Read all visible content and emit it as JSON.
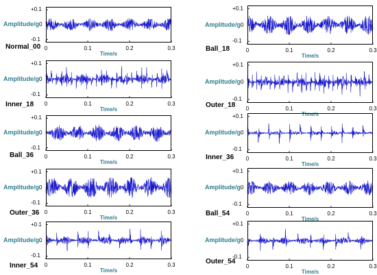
{
  "labels": {
    "y_axis": "Amplitude/g",
    "x_axis": "Time/s",
    "y_ticks": [
      "+0.1",
      "0",
      "-0.1"
    ],
    "x_ticks": [
      "0",
      "0.1",
      "0.2",
      "0.3"
    ]
  },
  "colors": {
    "signal": "#1a1acc",
    "axis": "#000000",
    "label": "#2e7d8c"
  },
  "chart_data": [
    {
      "type": "line",
      "title": "Normal_00",
      "xlabel": "Time/s",
      "ylabel": "Amplitude/g",
      "xlim": [
        0,
        0.3
      ],
      "ylim": [
        -0.12,
        0.12
      ],
      "impulses_per_window": 0,
      "noise_level": 0.045
    },
    {
      "type": "line",
      "title": "Ball_18",
      "xlabel": "Time/s",
      "ylabel": "Amplitude/g",
      "xlim": [
        0,
        0.3
      ],
      "ylim": [
        -0.12,
        0.12
      ],
      "impulses_per_window": 0,
      "noise_level": 0.06
    },
    {
      "type": "line",
      "title": "Inner_18",
      "xlabel": "Time/s",
      "ylabel": "Amplitude/g",
      "xlim": [
        0,
        0.3
      ],
      "ylim": [
        -0.12,
        0.12
      ],
      "impulses_per_window": 25,
      "noise_level": 0.03
    },
    {
      "type": "line",
      "title": "Outer_18",
      "xlabel": "Time/s",
      "ylabel": "Amplitude/g",
      "xlim": [
        0,
        0.3
      ],
      "ylim": [
        -0.12,
        0.12
      ],
      "impulses_per_window": 28,
      "noise_level": 0.025
    },
    {
      "type": "line",
      "title": "Ball_36",
      "xlabel": "Time/s",
      "ylabel": "Amplitude/g",
      "xlim": [
        0,
        0.3
      ],
      "ylim": [
        -0.12,
        0.12
      ],
      "impulses_per_window": 0,
      "noise_level": 0.06
    },
    {
      "type": "line",
      "title": "Inner_36",
      "xlabel": "Time/s",
      "ylabel": "Amplitude/g",
      "xlim": [
        0,
        0.3
      ],
      "ylim": [
        -0.12,
        0.12
      ],
      "impulses_per_window": 12,
      "noise_level": 0.01
    },
    {
      "type": "line",
      "title": "Outer_36",
      "xlabel": "Time/s",
      "ylabel": "Amplitude/g",
      "xlim": [
        0,
        0.3
      ],
      "ylim": [
        -0.12,
        0.12
      ],
      "impulses_per_window": 0,
      "noise_level": 0.07
    },
    {
      "type": "line",
      "title": "Ball_54",
      "xlabel": "Time/s",
      "ylabel": "Amplitude/g",
      "xlim": [
        0,
        0.3
      ],
      "ylim": [
        -0.12,
        0.12
      ],
      "impulses_per_window": 0,
      "noise_level": 0.045
    },
    {
      "type": "line",
      "title": "Inner_54",
      "xlabel": "Time/s",
      "ylabel": "Amplitude/g",
      "xlim": [
        0,
        0.3
      ],
      "ylim": [
        -0.12,
        0.12
      ],
      "impulses_per_window": 12,
      "noise_level": 0.025
    },
    {
      "type": "line",
      "title": "Outer_54",
      "xlabel": "Time/s",
      "ylabel": "Amplitude/g",
      "xlim": [
        0,
        0.3
      ],
      "ylim": [
        -0.12,
        0.12
      ],
      "impulses_per_window": 10,
      "noise_level": 0.02
    }
  ]
}
